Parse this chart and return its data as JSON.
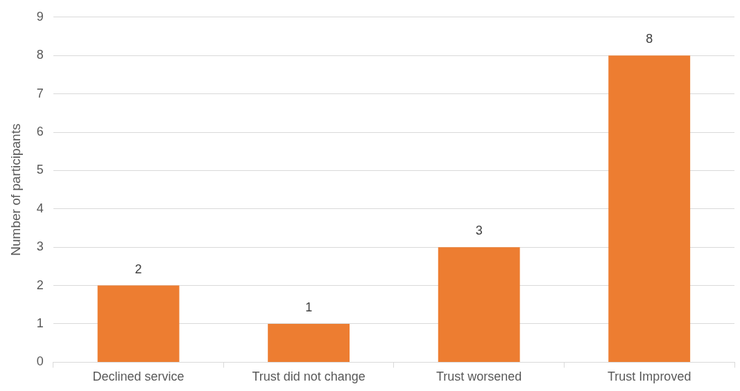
{
  "chart_data": {
    "type": "bar",
    "ylabel": "Number of participants",
    "categories": [
      "Declined service",
      "Trust did not change",
      "Trust worsened",
      "Trust Improved"
    ],
    "values": [
      2,
      1,
      3,
      8
    ],
    "color": "#ed7d31",
    "ylim": [
      0,
      9
    ],
    "yticks": [
      0,
      1,
      2,
      3,
      4,
      5,
      6,
      7,
      8,
      9
    ],
    "grid": "y",
    "legend": false,
    "data_labels": true
  }
}
